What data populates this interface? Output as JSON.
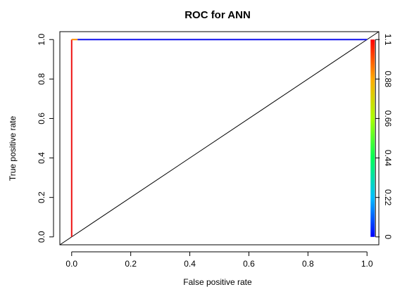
{
  "chart_data": {
    "type": "line",
    "title": "ROC for ANN",
    "xlabel": "False positive rate",
    "ylabel": "True positive rate",
    "xlim": [
      -0.04,
      1.04
    ],
    "ylim": [
      -0.04,
      1.04
    ],
    "x_ticks": [
      {
        "value": 0.0,
        "label": "0.0"
      },
      {
        "value": 0.2,
        "label": "0.2"
      },
      {
        "value": 0.4,
        "label": "0.4"
      },
      {
        "value": 0.6,
        "label": "0.6"
      },
      {
        "value": 0.8,
        "label": "0.8"
      },
      {
        "value": 1.0,
        "label": "1.0"
      }
    ],
    "y_ticks": [
      {
        "value": 0.0,
        "label": "0.0"
      },
      {
        "value": 0.2,
        "label": "0.2"
      },
      {
        "value": 0.4,
        "label": "0.4"
      },
      {
        "value": 0.6,
        "label": "0.6"
      },
      {
        "value": 0.8,
        "label": "0.8"
      },
      {
        "value": 1.0,
        "label": "1.0"
      }
    ],
    "colorbar": {
      "min": 0,
      "max": 1.1,
      "ticks": [
        {
          "value": 0,
          "label": "0"
        },
        {
          "value": 0.22,
          "label": "0.22"
        },
        {
          "value": 0.44,
          "label": "0.44"
        },
        {
          "value": 0.66,
          "label": "0.66"
        },
        {
          "value": 0.88,
          "label": "0.88"
        },
        {
          "value": 1.1,
          "label": "1.1"
        }
      ]
    },
    "roc_curve": {
      "segments": [
        {
          "x": [
            0.0,
            0.0
          ],
          "y": [
            0.0,
            1.0
          ],
          "color": "#ee1111"
        },
        {
          "x": [
            0.0,
            0.02
          ],
          "y": [
            1.0,
            1.0
          ],
          "color": "#ff8c00"
        },
        {
          "x": [
            0.02,
            1.0
          ],
          "y": [
            1.0,
            1.0
          ],
          "color": "#1111ee"
        }
      ]
    },
    "reference_line": {
      "x": [
        -0.04,
        1.04
      ],
      "y": [
        -0.04,
        1.04
      ],
      "color": "#000000"
    },
    "grid": false
  }
}
